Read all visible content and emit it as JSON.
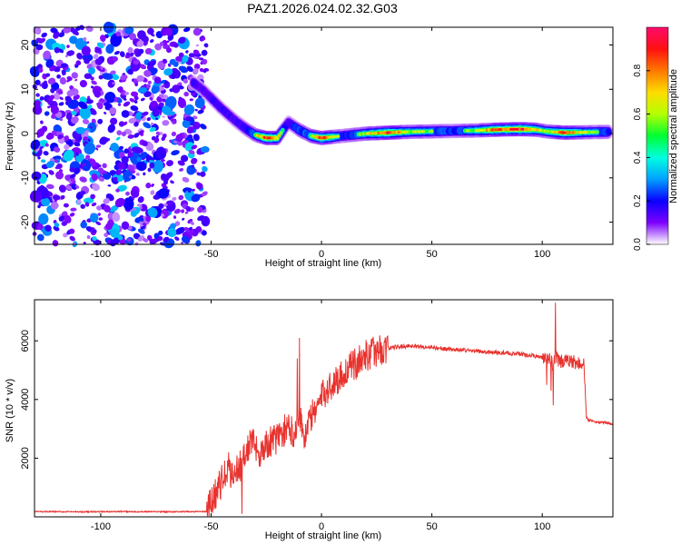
{
  "title": "PAZ1.2026.024.02.32.G03",
  "chart_data": [
    {
      "type": "heatmap",
      "name": "spectrogram",
      "xlabel": "Height of straight line (km)",
      "ylabel": "Frequency (Hz)",
      "xlim": [
        -130,
        132
      ],
      "ylim": [
        -25,
        24
      ],
      "xticks": [
        -100,
        -50,
        0,
        50,
        100
      ],
      "yticks": [
        -20,
        -10,
        0,
        10,
        20
      ],
      "noise_region_x": [
        -130,
        -52
      ],
      "ridge": [
        {
          "x": -58,
          "y": 11.5,
          "a": 0.35
        },
        {
          "x": -54,
          "y": 10,
          "a": 0.3
        },
        {
          "x": -50,
          "y": 8,
          "a": 0.35
        },
        {
          "x": -46,
          "y": 6,
          "a": 0.35
        },
        {
          "x": -42,
          "y": 4.2,
          "a": 0.35
        },
        {
          "x": -38,
          "y": 2.5,
          "a": 0.35
        },
        {
          "x": -34,
          "y": 1,
          "a": 0.4
        },
        {
          "x": -30,
          "y": -0.3,
          "a": 0.55
        },
        {
          "x": -25,
          "y": -1,
          "a": 0.9
        },
        {
          "x": -20,
          "y": -1,
          "a": 0.75
        },
        {
          "x": -15,
          "y": 2.5,
          "a": 0.35
        },
        {
          "x": -10,
          "y": 0.8,
          "a": 0.5
        },
        {
          "x": -5,
          "y": -0.5,
          "a": 0.55
        },
        {
          "x": 0,
          "y": -1,
          "a": 0.9
        },
        {
          "x": 10,
          "y": -0.5,
          "a": 0.45
        },
        {
          "x": 20,
          "y": 0,
          "a": 0.6
        },
        {
          "x": 30,
          "y": 0.2,
          "a": 0.85
        },
        {
          "x": 40,
          "y": 0.4,
          "a": 0.6
        },
        {
          "x": 50,
          "y": 0.5,
          "a": 0.55
        },
        {
          "x": 60,
          "y": 0.6,
          "a": 0.5
        },
        {
          "x": 70,
          "y": 0.7,
          "a": 0.6
        },
        {
          "x": 80,
          "y": 0.9,
          "a": 0.85
        },
        {
          "x": 90,
          "y": 1,
          "a": 0.9
        },
        {
          "x": 97,
          "y": 0.9,
          "a": 0.7
        },
        {
          "x": 102,
          "y": 0.5,
          "a": 0.6
        },
        {
          "x": 110,
          "y": 0.2,
          "a": 0.8
        },
        {
          "x": 120,
          "y": 0.3,
          "a": 0.6
        },
        {
          "x": 130,
          "y": 0.4,
          "a": 0.5
        }
      ]
    },
    {
      "type": "line",
      "name": "snr",
      "xlabel": "Height of straight line (km)",
      "ylabel": "SNR (10 * v/v)",
      "xlim": [
        -130,
        132
      ],
      "ylim": [
        0,
        7400
      ],
      "xticks": [
        -100,
        -50,
        0,
        50,
        100
      ],
      "yticks": [
        2000,
        4000,
        6000
      ],
      "series": [
        {
          "name": "SNR",
          "color": "#e8332f",
          "x": [
            -130,
            -110,
            -90,
            -70,
            -52,
            -48,
            -44,
            -40,
            -36,
            -32,
            -28,
            -24,
            -20,
            -16,
            -12,
            -10,
            -8,
            -6,
            -2,
            2,
            6,
            10,
            15,
            20,
            25,
            30,
            35,
            40,
            45,
            50,
            55,
            60,
            65,
            70,
            75,
            80,
            85,
            90,
            95,
            100,
            103,
            105,
            106,
            108,
            110,
            115,
            119,
            120,
            121,
            125,
            132
          ],
          "values": [
            180,
            170,
            180,
            170,
            180,
            800,
            1400,
            1500,
            1800,
            2600,
            2200,
            2500,
            2700,
            3000,
            2900,
            3700,
            2600,
            3200,
            3800,
            4300,
            4600,
            4900,
            5200,
            5500,
            5650,
            5750,
            5800,
            5830,
            5800,
            5780,
            5740,
            5700,
            5680,
            5650,
            5620,
            5600,
            5580,
            5550,
            5500,
            5450,
            5400,
            5200,
            5500,
            5300,
            5300,
            5250,
            5200,
            3400,
            3300,
            3220,
            3180
          ],
          "spikes": [
            {
              "x": -10,
              "y": 6100
            },
            {
              "x": -11,
              "y": 5400
            },
            {
              "x": 106,
              "y": 7300
            },
            {
              "x": 104,
              "y": 4300
            },
            {
              "x": 105,
              "y": 3800
            },
            {
              "x": 102,
              "y": 4500
            },
            {
              "x": -36,
              "y": 100
            },
            {
              "x": -42,
              "y": 2200
            }
          ]
        }
      ]
    }
  ],
  "colorbar": {
    "label": "Normalized spectral amplitude",
    "ticks": [
      0.0,
      0.2,
      0.4,
      0.6,
      0.8
    ],
    "tick_labels": [
      "0.0",
      "0.2",
      "0.4",
      "0.6",
      "0.8"
    ],
    "colors": [
      "#ffffff",
      "#7c00ff",
      "#0a00ff",
      "#00a0ff",
      "#00ffe0",
      "#00ff30",
      "#b4ff00",
      "#ffdc00",
      "#ff7800",
      "#ff1010",
      "#ff0a6e"
    ]
  }
}
